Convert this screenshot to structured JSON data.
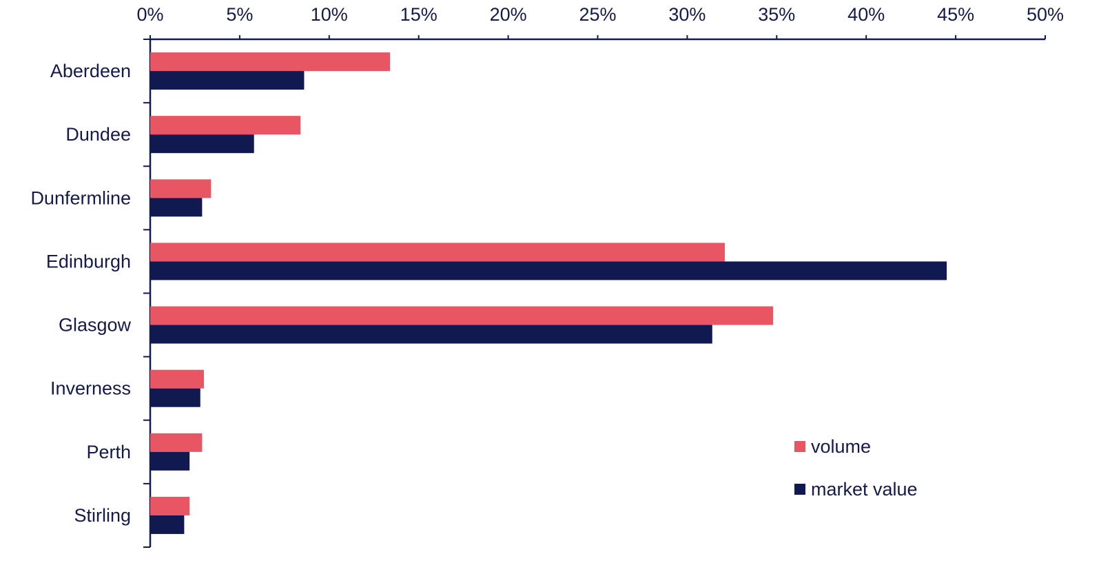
{
  "chart_data": {
    "type": "bar",
    "orientation": "horizontal",
    "categories": [
      "Aberdeen",
      "Dundee",
      "Dunfermline",
      "Edinburgh",
      "Glasgow",
      "Inverness",
      "Perth",
      "Stirling"
    ],
    "series": [
      {
        "name": "volume",
        "color": "#e85563",
        "values": [
          13.4,
          8.4,
          3.4,
          32.1,
          34.8,
          3.0,
          2.9,
          2.2
        ]
      },
      {
        "name": "market value",
        "color": "#101a50",
        "values": [
          8.6,
          5.8,
          2.9,
          44.5,
          31.4,
          2.8,
          2.2,
          1.9
        ]
      }
    ],
    "x_ticks": [
      "0%",
      "5%",
      "10%",
      "15%",
      "20%",
      "25%",
      "30%",
      "35%",
      "40%",
      "45%",
      "50%"
    ],
    "xlim": [
      0,
      50
    ],
    "x_axis_position": "top",
    "grid": false,
    "legend_position": "bottom-right",
    "title": "",
    "xlabel": "",
    "ylabel": ""
  },
  "colors": {
    "axis": "#101a50",
    "text": "#141a4a"
  }
}
